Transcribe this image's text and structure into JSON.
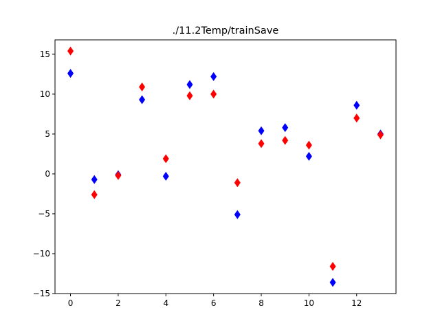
{
  "chart_data": {
    "type": "scatter",
    "title": "./11.2Temp/trainSave",
    "xlabel": "",
    "ylabel": "",
    "xlim": [
      -0.65,
      13.65
    ],
    "ylim": [
      -15,
      16.8
    ],
    "xticks": [
      0,
      2,
      4,
      6,
      8,
      10,
      12
    ],
    "yticks": [
      -15,
      -10,
      -5,
      0,
      5,
      10,
      15
    ],
    "xtick_labels": [
      "0",
      "2",
      "4",
      "6",
      "8",
      "10",
      "12"
    ],
    "ytick_labels": [
      "−15",
      "−10",
      "−5",
      "0",
      "5",
      "10",
      "15"
    ],
    "grid": false,
    "marker": "diamond",
    "x": [
      0,
      1,
      2,
      3,
      4,
      5,
      6,
      7,
      8,
      9,
      10,
      11,
      12,
      13
    ],
    "series": [
      {
        "color": "#0000ff",
        "values": [
          12.6,
          -0.7,
          -0.1,
          9.3,
          -0.3,
          11.2,
          12.2,
          -5.1,
          5.4,
          5.8,
          2.2,
          -13.6,
          8.6,
          5.0
        ]
      },
      {
        "color": "#ff0000",
        "values": [
          15.4,
          -2.6,
          -0.2,
          10.9,
          1.9,
          9.8,
          10.0,
          -1.1,
          3.8,
          4.2,
          3.6,
          -11.6,
          7.0,
          4.9
        ]
      }
    ]
  }
}
